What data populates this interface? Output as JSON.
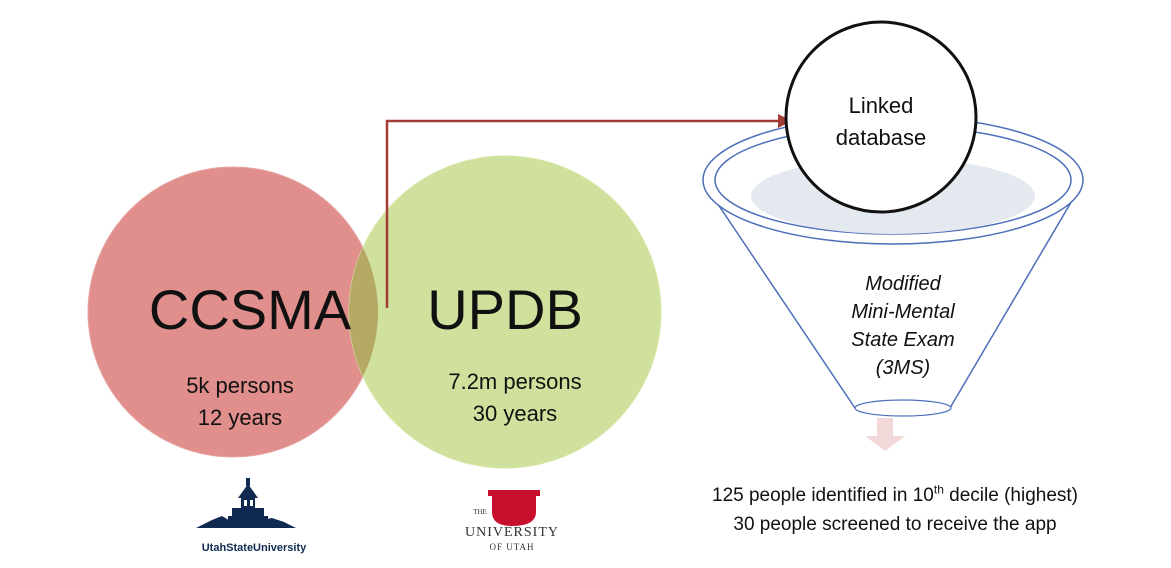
{
  "sets": {
    "left": {
      "name": "CCSMA",
      "line1": "5k persons",
      "line2": "12 years",
      "color": "#e18f8d"
    },
    "right": {
      "name": "UPDB",
      "line1": "7.2m persons",
      "line2": "30 years",
      "color": "#cfe19c"
    },
    "overlap_color": "#b6a865"
  },
  "linked": {
    "line1": "Linked",
    "line2": "database"
  },
  "funnel": {
    "line1": "Modified",
    "line2": "Mini-Mental",
    "line3": "State Exam",
    "line4": "(3MS)",
    "stroke": "#4d6fba",
    "fill": "#e4e8ef"
  },
  "arrow_color": "#a33b36",
  "down_arrow_color": "#f2d8d8",
  "result": {
    "line1_pre": "125 people identified in 10",
    "line1_sup": "th",
    "line1_post": " decile (highest)",
    "line2": "30 people screened to receive the app"
  },
  "logos": {
    "usu": {
      "text": "UtahStateUniversity",
      "color": "#102a52"
    },
    "uofu": {
      "mark": "U",
      "the": "THE",
      "university": "UNIVERSITY",
      "of_utah": "OF UTAH",
      "color": "#c8102e"
    }
  }
}
